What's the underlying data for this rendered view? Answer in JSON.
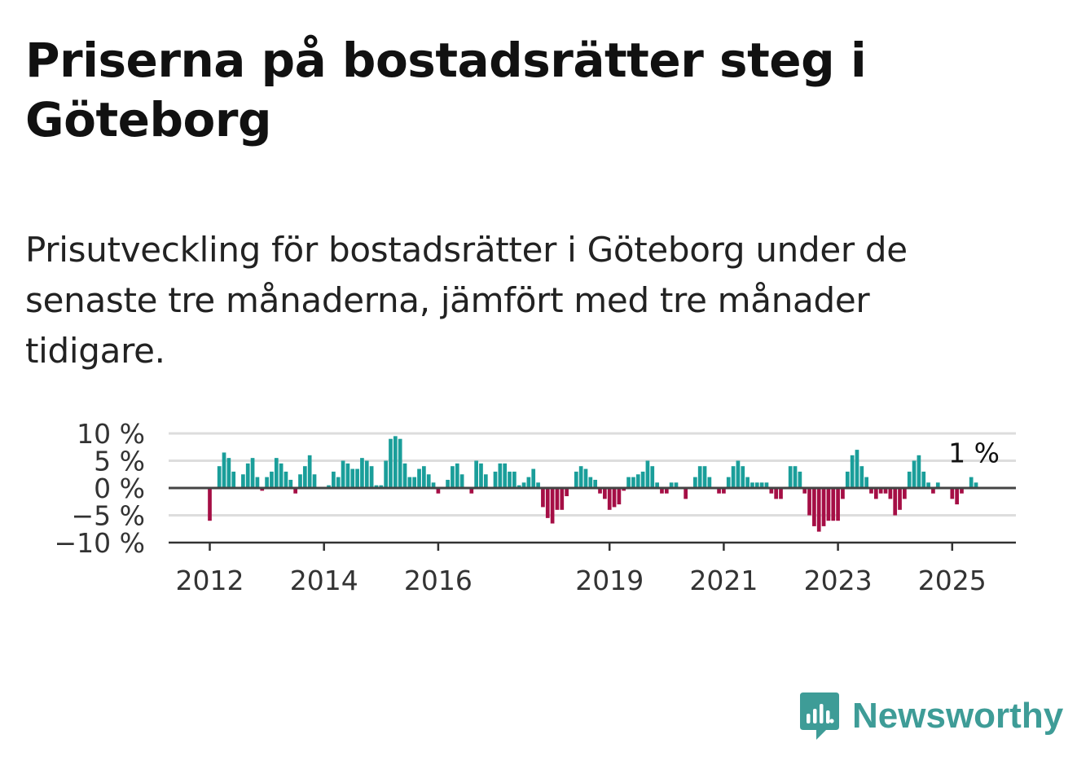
{
  "title": "Priserna på bostadsrätter steg i Göteborg",
  "subtitle": "Prisutveckling för bostadsrätter i Göteborg under de senaste tre månaderna, jämfört med tre månader tidigare.",
  "brand": {
    "name": "Newsworthy",
    "color": "#3e9c97",
    "icon": "newsworthy-bar-chart-icon"
  },
  "colors": {
    "positive": "#1a9e9a",
    "negative": "#a50e45",
    "grid": "#dddddd",
    "zero": "#444444"
  },
  "chart_data": {
    "type": "bar",
    "unit": "%",
    "ylim": [
      -10,
      10
    ],
    "yticks": [
      {
        "value": 10,
        "label": "10 %"
      },
      {
        "value": 5,
        "label": "5 %"
      },
      {
        "value": 0,
        "label": "0 %"
      },
      {
        "value": -5,
        "label": "−5 %"
      },
      {
        "value": -10,
        "label": "−10 %"
      }
    ],
    "xticks": [
      {
        "value": 2012,
        "label": "2012"
      },
      {
        "value": 2014,
        "label": "2014"
      },
      {
        "value": 2016,
        "label": "2016"
      },
      {
        "value": 2019,
        "label": "2019"
      },
      {
        "value": 2021,
        "label": "2021"
      },
      {
        "value": 2023,
        "label": "2023"
      },
      {
        "value": 2025,
        "label": "2025"
      }
    ],
    "xlim": [
      2011.3,
      2026.1
    ],
    "start": "2012-01",
    "grid": true,
    "end_label": "1 %",
    "values": [
      -6,
      0,
      4,
      6.5,
      5.5,
      3,
      0,
      2.5,
      4.5,
      5.5,
      2,
      -0.5,
      2,
      3,
      5.5,
      4.5,
      3,
      1.5,
      -1,
      2.5,
      4,
      6,
      2.5,
      0,
      0,
      0.5,
      3,
      2,
      5,
      4.5,
      3.5,
      3.5,
      5.5,
      5,
      4,
      0.5,
      0.5,
      5,
      9,
      9.5,
      9,
      4.5,
      2,
      2,
      3.5,
      4,
      2.5,
      1,
      -1,
      0,
      1.5,
      4,
      4.5,
      2.5,
      0,
      -1,
      5,
      4.5,
      2.5,
      0,
      3,
      4.5,
      4.5,
      3,
      3,
      0.5,
      1,
      2,
      3.5,
      1,
      -3.5,
      -5.5,
      -6.5,
      -4,
      -4,
      -1.5,
      0,
      3,
      4,
      3.5,
      2,
      1.5,
      -1,
      -2,
      -4,
      -3.5,
      -3,
      -0.5,
      2,
      2,
      2.5,
      3,
      5,
      4,
      1,
      -1,
      -1,
      1,
      1,
      0,
      -2,
      0,
      2,
      4,
      4,
      2,
      0,
      -1,
      -1,
      2,
      4,
      5,
      4,
      2,
      1,
      1,
      1,
      1,
      -1,
      -2,
      -2,
      0,
      4,
      4,
      3,
      -1,
      -5,
      -7,
      -8,
      -7,
      -6,
      -6,
      -6,
      -2,
      3,
      6,
      7,
      4,
      2,
      -1,
      -2,
      -1,
      -1,
      -2,
      -5,
      -4,
      -2,
      3,
      5,
      6,
      3,
      1,
      -1,
      1,
      0,
      0,
      -2,
      -3,
      -1,
      0,
      2,
      1
    ]
  }
}
